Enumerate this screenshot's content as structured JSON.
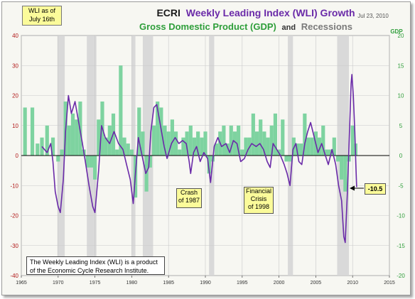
{
  "header": {
    "title_prefix": "ECRI",
    "title_main": "Weekly Leading Index (WLI) Growth",
    "subtitle_gdp": "Gross Domestic Product (GDP)",
    "subtitle_and": "and",
    "subtitle_recessions": "Recessions",
    "date": "Jul 23, 2010",
    "badge_line1": "WLI as of",
    "badge_line2": "July 16th"
  },
  "annotations": {
    "crash_1987_line1": "Crash",
    "crash_1987_line2": "of 1987",
    "crisis_1998_line1": "Financial",
    "crisis_1998_line2": "Crisis",
    "crisis_1998_line3": "of 1998",
    "latest_value": "-10.5",
    "source_line1": "The Weekly Leading Index (WLI) is a product",
    "source_line2": "of the Economic Cycle Research Institute."
  },
  "chart_data": {
    "type": "line",
    "x_range": [
      1965,
      2015
    ],
    "x_ticks": [
      1965,
      1970,
      1975,
      1980,
      1985,
      1990,
      1995,
      2000,
      2005,
      2010,
      2015
    ],
    "left_axis": {
      "range": [
        -40,
        40
      ],
      "ticks": [
        -40,
        -30,
        -20,
        -10,
        0,
        10,
        20,
        30,
        40
      ],
      "color": "#b11a1a"
    },
    "right_axis": {
      "label": "GDP",
      "range": [
        -20,
        20
      ],
      "ticks": [
        -20,
        -15,
        -10,
        -5,
        0,
        5,
        10,
        15,
        20
      ],
      "color": "#2e9e3a"
    },
    "grid": true,
    "recessions": [
      [
        1969.9,
        1970.9
      ],
      [
        1973.9,
        1975.2
      ],
      [
        1980.0,
        1980.5
      ],
      [
        1981.5,
        1982.9
      ],
      [
        1990.5,
        1991.2
      ],
      [
        2001.2,
        2001.9
      ],
      [
        2007.9,
        2009.5
      ]
    ],
    "series": [
      {
        "name": "Weekly Leading Index (WLI) Growth",
        "axis": "left",
        "color": "#6a2aa8",
        "points": [
          [
            1967.8,
            3
          ],
          [
            1968.5,
            1
          ],
          [
            1969.0,
            4
          ],
          [
            1969.3,
            -2
          ],
          [
            1969.6,
            -12
          ],
          [
            1970.0,
            -17
          ],
          [
            1970.3,
            -19
          ],
          [
            1970.7,
            -8
          ],
          [
            1971.0,
            8
          ],
          [
            1971.4,
            20
          ],
          [
            1971.8,
            14
          ],
          [
            1972.3,
            18
          ],
          [
            1972.8,
            11
          ],
          [
            1973.3,
            4
          ],
          [
            1973.7,
            -2
          ],
          [
            1974.2,
            -10
          ],
          [
            1974.7,
            -17
          ],
          [
            1975.0,
            -19
          ],
          [
            1975.5,
            -5
          ],
          [
            1975.9,
            10
          ],
          [
            1976.4,
            6
          ],
          [
            1977.0,
            4
          ],
          [
            1977.6,
            8
          ],
          [
            1978.2,
            4
          ],
          [
            1978.8,
            2
          ],
          [
            1979.3,
            -3
          ],
          [
            1979.8,
            -8
          ],
          [
            1980.2,
            -16
          ],
          [
            1980.5,
            -6
          ],
          [
            1980.9,
            6
          ],
          [
            1981.4,
            0
          ],
          [
            1981.9,
            -6
          ],
          [
            1982.3,
            -4
          ],
          [
            1982.6,
            8
          ],
          [
            1983.0,
            16
          ],
          [
            1983.4,
            17
          ],
          [
            1983.9,
            10
          ],
          [
            1984.4,
            3
          ],
          [
            1984.8,
            -1
          ],
          [
            1985.4,
            4
          ],
          [
            1985.9,
            6
          ],
          [
            1986.4,
            4
          ],
          [
            1986.9,
            5
          ],
          [
            1987.4,
            4
          ],
          [
            1987.8,
            -2
          ],
          [
            1988.0,
            -6
          ],
          [
            1988.4,
            1
          ],
          [
            1988.8,
            3
          ],
          [
            1989.3,
            -2
          ],
          [
            1989.8,
            1
          ],
          [
            1990.3,
            -1
          ],
          [
            1990.7,
            -9
          ],
          [
            1991.2,
            3
          ],
          [
            1991.7,
            6
          ],
          [
            1992.2,
            3
          ],
          [
            1992.8,
            4
          ],
          [
            1993.3,
            1
          ],
          [
            1993.8,
            5
          ],
          [
            1994.3,
            4
          ],
          [
            1994.8,
            -2
          ],
          [
            1995.3,
            -1
          ],
          [
            1995.8,
            2
          ],
          [
            1996.3,
            4
          ],
          [
            1996.9,
            3
          ],
          [
            1997.4,
            4
          ],
          [
            1997.9,
            2
          ],
          [
            1998.4,
            -2
          ],
          [
            1998.8,
            -4
          ],
          [
            1999.2,
            4
          ],
          [
            1999.7,
            2
          ],
          [
            2000.2,
            0
          ],
          [
            2000.7,
            -3
          ],
          [
            2001.1,
            -6
          ],
          [
            2001.5,
            -10
          ],
          [
            2001.9,
            2
          ],
          [
            2002.3,
            4
          ],
          [
            2002.7,
            -2
          ],
          [
            2003.1,
            -3
          ],
          [
            2003.5,
            4
          ],
          [
            2003.9,
            8
          ],
          [
            2004.3,
            11
          ],
          [
            2004.8,
            6
          ],
          [
            2005.3,
            1
          ],
          [
            2005.8,
            4
          ],
          [
            2006.3,
            0
          ],
          [
            2006.7,
            -3
          ],
          [
            2007.2,
            2
          ],
          [
            2007.7,
            -3
          ],
          [
            2008.1,
            -10
          ],
          [
            2008.5,
            -15
          ],
          [
            2008.8,
            -27
          ],
          [
            2009.0,
            -29
          ],
          [
            2009.3,
            -12
          ],
          [
            2009.6,
            10
          ],
          [
            2009.8,
            24
          ],
          [
            2009.9,
            27
          ],
          [
            2010.1,
            20
          ],
          [
            2010.3,
            8
          ],
          [
            2010.45,
            -4
          ],
          [
            2010.55,
            -10.5
          ]
        ]
      },
      {
        "name": "Gross Domestic Product (GDP)",
        "axis": "right",
        "color": "#7ed3a0",
        "bars": [
          [
            1965.5,
            8
          ],
          [
            1966.5,
            8
          ],
          [
            1967.2,
            2
          ],
          [
            1967.8,
            3
          ],
          [
            1968.5,
            5
          ],
          [
            1969.3,
            3
          ],
          [
            1970.0,
            -1
          ],
          [
            1970.5,
            1
          ],
          [
            1971.0,
            9
          ],
          [
            1971.5,
            5
          ],
          [
            1972.0,
            7
          ],
          [
            1972.5,
            6
          ],
          [
            1973.0,
            9
          ],
          [
            1973.5,
            1
          ],
          [
            1974.0,
            -2
          ],
          [
            1974.5,
            -2
          ],
          [
            1975.0,
            -4
          ],
          [
            1975.5,
            6
          ],
          [
            1976.0,
            9
          ],
          [
            1976.5,
            3
          ],
          [
            1977.0,
            5
          ],
          [
            1977.5,
            7
          ],
          [
            1978.0,
            1
          ],
          [
            1978.5,
            15
          ],
          [
            1979.0,
            3
          ],
          [
            1979.5,
            2
          ],
          [
            1980.0,
            1
          ],
          [
            1980.5,
            -7
          ],
          [
            1981.0,
            8
          ],
          [
            1981.5,
            4
          ],
          [
            1982.0,
            -6
          ],
          [
            1982.5,
            -2
          ],
          [
            1983.0,
            5
          ],
          [
            1983.5,
            9
          ],
          [
            1984.0,
            8
          ],
          [
            1984.5,
            5
          ],
          [
            1985.0,
            4
          ],
          [
            1985.5,
            6
          ],
          [
            1986.0,
            4
          ],
          [
            1986.5,
            1
          ],
          [
            1987.0,
            3
          ],
          [
            1987.5,
            4
          ],
          [
            1988.0,
            5
          ],
          [
            1988.5,
            3
          ],
          [
            1989.0,
            4
          ],
          [
            1989.5,
            3
          ],
          [
            1990.0,
            4
          ],
          [
            1990.5,
            -3
          ],
          [
            1991.0,
            -1
          ],
          [
            1991.5,
            2
          ],
          [
            1992.0,
            4
          ],
          [
            1992.5,
            5
          ],
          [
            1993.0,
            2
          ],
          [
            1993.5,
            5
          ],
          [
            1994.0,
            4
          ],
          [
            1994.5,
            5
          ],
          [
            1995.0,
            1
          ],
          [
            1995.5,
            3
          ],
          [
            1996.0,
            3
          ],
          [
            1996.5,
            7
          ],
          [
            1997.0,
            4
          ],
          [
            1997.5,
            6
          ],
          [
            1998.0,
            4
          ],
          [
            1998.5,
            3
          ],
          [
            1999.0,
            5
          ],
          [
            1999.5,
            7
          ],
          [
            2000.0,
            1
          ],
          [
            2000.5,
            6
          ],
          [
            2001.0,
            -1
          ],
          [
            2001.5,
            -1
          ],
          [
            2002.0,
            3
          ],
          [
            2002.5,
            2
          ],
          [
            2003.0,
            2
          ],
          [
            2003.5,
            7
          ],
          [
            2004.0,
            3
          ],
          [
            2004.5,
            3
          ],
          [
            2005.0,
            4
          ],
          [
            2005.5,
            3
          ],
          [
            2006.0,
            5
          ],
          [
            2006.5,
            1
          ],
          [
            2007.0,
            1
          ],
          [
            2007.5,
            3
          ],
          [
            2008.0,
            -1
          ],
          [
            2008.5,
            -4
          ],
          [
            2009.0,
            -6
          ],
          [
            2009.5,
            -1
          ],
          [
            2010.0,
            5
          ],
          [
            2010.4,
            2
          ]
        ]
      }
    ]
  }
}
